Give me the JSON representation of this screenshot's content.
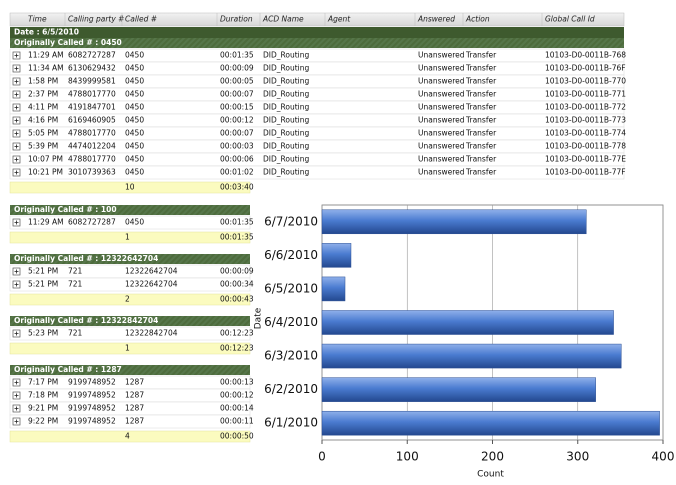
{
  "table": {
    "columns": [
      "Time",
      "Calling party #",
      "Called #",
      "Duration",
      "ACD Name",
      "Agent",
      "Answered",
      "Action",
      "Global Call Id"
    ],
    "date_header": "Date : 6/5/2010",
    "groups": [
      {
        "title": "Originally Called # : 0450",
        "rows": [
          {
            "time": "11:29 AM",
            "calling": "6082727287",
            "called": "0450",
            "duration": "00:01:35",
            "acd": "DID_Routing",
            "answered": "Unanswered",
            "action": "Transfer",
            "call_id": "10103-D0-0011B-768"
          },
          {
            "time": "11:34 AM",
            "calling": "6130629432",
            "called": "0450",
            "duration": "00:00:09",
            "acd": "DID_Routing",
            "answered": "Unanswered",
            "action": "Transfer",
            "call_id": "10103-D0-0011B-76F"
          },
          {
            "time": "1:58 PM",
            "calling": "8439999581",
            "called": "0450",
            "duration": "00:00:05",
            "acd": "DID_Routing",
            "answered": "Unanswered",
            "action": "Transfer",
            "call_id": "10103-D0-0011B-770"
          },
          {
            "time": "2:37 PM",
            "calling": "4788017770",
            "called": "0450",
            "duration": "00:00:07",
            "acd": "DID_Routing",
            "answered": "Unanswered",
            "action": "Transfer",
            "call_id": "10103-D0-0011B-771"
          },
          {
            "time": "4:11 PM",
            "calling": "4191847701",
            "called": "0450",
            "duration": "00:00:15",
            "acd": "DID_Routing",
            "answered": "Unanswered",
            "action": "Transfer",
            "call_id": "10103-D0-0011B-772"
          },
          {
            "time": "4:16 PM",
            "calling": "6169460905",
            "called": "0450",
            "duration": "00:00:12",
            "acd": "DID_Routing",
            "answered": "Unanswered",
            "action": "Transfer",
            "call_id": "10103-D0-0011B-773"
          },
          {
            "time": "5:05 PM",
            "calling": "4788017770",
            "called": "0450",
            "duration": "00:00:07",
            "acd": "DID_Routing",
            "answered": "Unanswered",
            "action": "Transfer",
            "call_id": "10103-D0-0011B-774"
          },
          {
            "time": "5:39 PM",
            "calling": "4474012204",
            "called": "0450",
            "duration": "00:00:03",
            "acd": "DID_Routing",
            "answered": "Unanswered",
            "action": "Transfer",
            "call_id": "10103-D0-0011B-778"
          },
          {
            "time": "10:07 PM",
            "calling": "4788017770",
            "called": "0450",
            "duration": "00:00:06",
            "acd": "DID_Routing",
            "answered": "Unanswered",
            "action": "Transfer",
            "call_id": "10103-D0-0011B-77E"
          },
          {
            "time": "10:21 PM",
            "calling": "3010739363",
            "called": "0450",
            "duration": "00:01:02",
            "acd": "DID_Routing",
            "answered": "Unanswered",
            "action": "Transfer",
            "call_id": "10103-D0-0011B-77F"
          }
        ],
        "summary": {
          "count": 10,
          "duration": "00:03:40"
        }
      },
      {
        "title": "Originally Called # : 100",
        "rows": [
          {
            "time": "11:29 AM",
            "calling": "6082727287",
            "called": "0450",
            "duration": "00:01:35"
          }
        ],
        "summary": {
          "count": 1,
          "duration": "00:01:35"
        }
      },
      {
        "title": "Originally Called # : 12322642704",
        "rows": [
          {
            "time": "5:21 PM",
            "calling": "721",
            "called": "12322642704",
            "duration": "00:00:09"
          },
          {
            "time": "5:21 PM",
            "calling": "721",
            "called": "12322642704",
            "duration": "00:00:34"
          }
        ],
        "summary": {
          "count": 2,
          "duration": "00:00:43"
        }
      },
      {
        "title": "Originally Called # : 12322842704",
        "rows": [
          {
            "time": "5:23 PM",
            "calling": "721",
            "called": "12322842704",
            "duration": "00:12:23"
          }
        ],
        "summary": {
          "count": 1,
          "duration": "00:12:23"
        }
      },
      {
        "title": "Originally Called # : 1287",
        "rows": [
          {
            "time": "7:17 PM",
            "calling": "9199748952",
            "called": "1287",
            "duration": "00:00:13"
          },
          {
            "time": "7:18 PM",
            "calling": "9199748952",
            "called": "1287",
            "duration": "00:00:12"
          },
          {
            "time": "9:21 PM",
            "calling": "9199748952",
            "called": "1287",
            "duration": "00:00:14"
          },
          {
            "time": "9:22 PM",
            "calling": "9199748952",
            "called": "1287",
            "duration": "00:00:11"
          }
        ],
        "summary": {
          "count": 4,
          "duration": "00:00:50"
        }
      }
    ]
  },
  "chart_data": {
    "type": "bar",
    "orientation": "horizontal",
    "categories": [
      "6/7/2010",
      "6/6/2010",
      "6/5/2010",
      "6/4/2010",
      "6/3/2010",
      "6/2/2010",
      "6/1/2010"
    ],
    "values": [
      310,
      34,
      27,
      342,
      351,
      321,
      396
    ],
    "color": "#4a7bd0",
    "xlabel": "Count",
    "ylabel": "Date",
    "xlim": [
      0,
      400
    ],
    "xticks": [
      0,
      100,
      200,
      300,
      400
    ],
    "grid": true
  }
}
